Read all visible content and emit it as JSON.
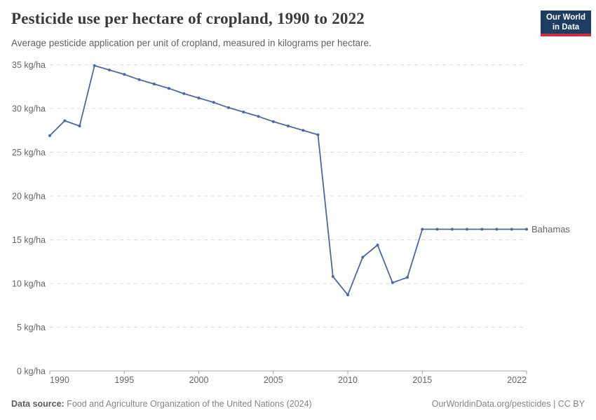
{
  "header": {
    "title": "Pesticide use per hectare of cropland, 1990 to 2022",
    "subtitle": "Average pesticide application per unit of cropland, measured in kilograms per hectare.",
    "logo": {
      "line1": "Our World",
      "line2": "in Data",
      "bg_color": "#1d3d63",
      "bar_color": "#c7303f"
    }
  },
  "footer": {
    "source_label": "Data source:",
    "source_text": " Food and Agriculture Organization of the United Nations (2024)",
    "credit_text": "OurWorldinData.org/pesticides | CC BY"
  },
  "chart_data": {
    "type": "line",
    "title": "Pesticide use per hectare of cropland, 1990 to 2022",
    "subtitle": "Average pesticide application per unit of cropland, measured in kilograms per hectare.",
    "xlabel": "",
    "ylabel": "kg/ha",
    "xlim": [
      1990,
      2022
    ],
    "ylim": [
      0,
      35
    ],
    "grid": "horizontal-dashed",
    "x_ticks": [
      1990,
      1995,
      2000,
      2005,
      2010,
      2015,
      2022
    ],
    "y_ticks": [
      0,
      5,
      10,
      15,
      20,
      25,
      30,
      35
    ],
    "y_tick_suffix": " kg/ha",
    "legend_position": "end-of-line-label",
    "series": [
      {
        "name": "Bahamas",
        "color": "#4c68a1",
        "x": [
          1990,
          1991,
          1992,
          1993,
          1994,
          1995,
          1996,
          1997,
          1998,
          1999,
          2000,
          2001,
          2002,
          2003,
          2004,
          2005,
          2006,
          2007,
          2008,
          2009,
          2010,
          2011,
          2012,
          2013,
          2014,
          2015,
          2016,
          2017,
          2018,
          2019,
          2020,
          2021,
          2022
        ],
        "values": [
          26.9,
          28.6,
          28.0,
          34.9,
          34.4,
          33.9,
          33.3,
          32.8,
          32.3,
          31.7,
          31.2,
          30.7,
          30.1,
          29.6,
          29.1,
          28.5,
          28.0,
          27.5,
          27.0,
          10.8,
          8.7,
          13.0,
          14.4,
          10.1,
          10.7,
          16.2,
          16.2,
          16.2,
          16.2,
          16.2,
          16.2,
          16.2,
          16.2
        ]
      }
    ],
    "colors": {
      "grid": "#dcdcdc",
      "axis_line": "#a3a3a3",
      "tick_text": "#666666"
    }
  }
}
